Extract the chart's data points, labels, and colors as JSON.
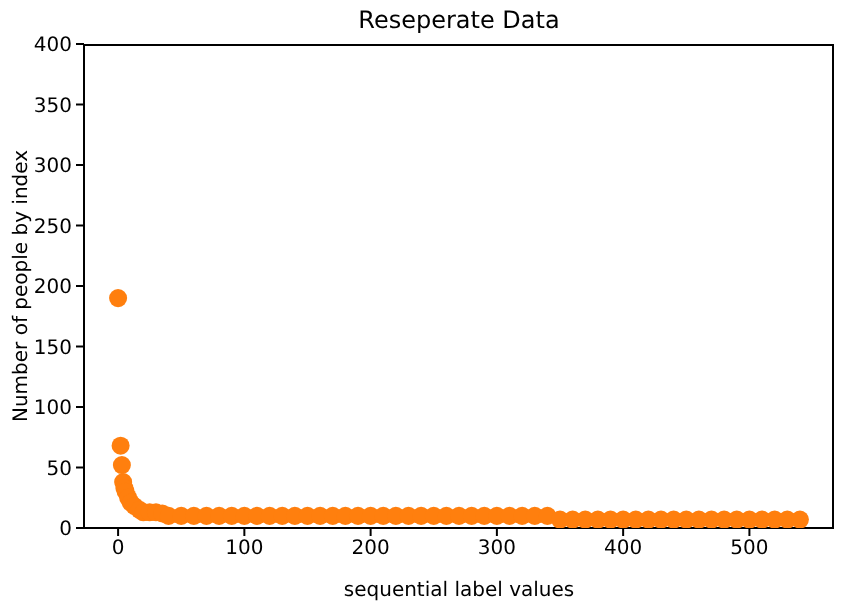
{
  "chart_data": {
    "type": "scatter",
    "title": "Reseperate Data",
    "xlabel": "sequential label values",
    "ylabel": "Number of people by index",
    "xlim": [
      -27,
      567
    ],
    "xticks": [
      0,
      100,
      200,
      300,
      400,
      500
    ],
    "ylim": [
      0,
      400
    ],
    "yticks": [
      0,
      50,
      100,
      150,
      200,
      250,
      300,
      350,
      400
    ],
    "grid": false,
    "marker": "circle",
    "series": [
      {
        "color": "#ff7f0e",
        "x": [
          0,
          2,
          3,
          4,
          5,
          6,
          8,
          10,
          13,
          17,
          20,
          25,
          30,
          35,
          40,
          50,
          60,
          70,
          80,
          90,
          100,
          110,
          120,
          130,
          140,
          150,
          160,
          170,
          180,
          190,
          200,
          210,
          220,
          230,
          240,
          250,
          260,
          270,
          280,
          290,
          300,
          310,
          320,
          330,
          340,
          350,
          360,
          370,
          380,
          390,
          400,
          410,
          420,
          430,
          440,
          450,
          460,
          470,
          480,
          490,
          500,
          510,
          520,
          530,
          540
        ],
        "values": [
          190,
          68,
          52,
          38,
          33,
          30,
          25,
          21,
          18,
          15,
          13,
          13,
          13,
          12,
          10,
          10,
          10,
          10,
          10,
          10,
          10,
          10,
          10,
          10,
          10,
          10,
          10,
          10,
          10,
          10,
          10,
          10,
          10,
          10,
          10,
          10,
          10,
          10,
          10,
          10,
          10,
          10,
          10,
          10,
          10,
          7,
          7,
          7,
          7,
          7,
          7,
          7,
          7,
          7,
          7,
          7,
          7,
          7,
          7,
          7,
          7,
          7,
          7,
          7,
          7
        ]
      }
    ]
  }
}
